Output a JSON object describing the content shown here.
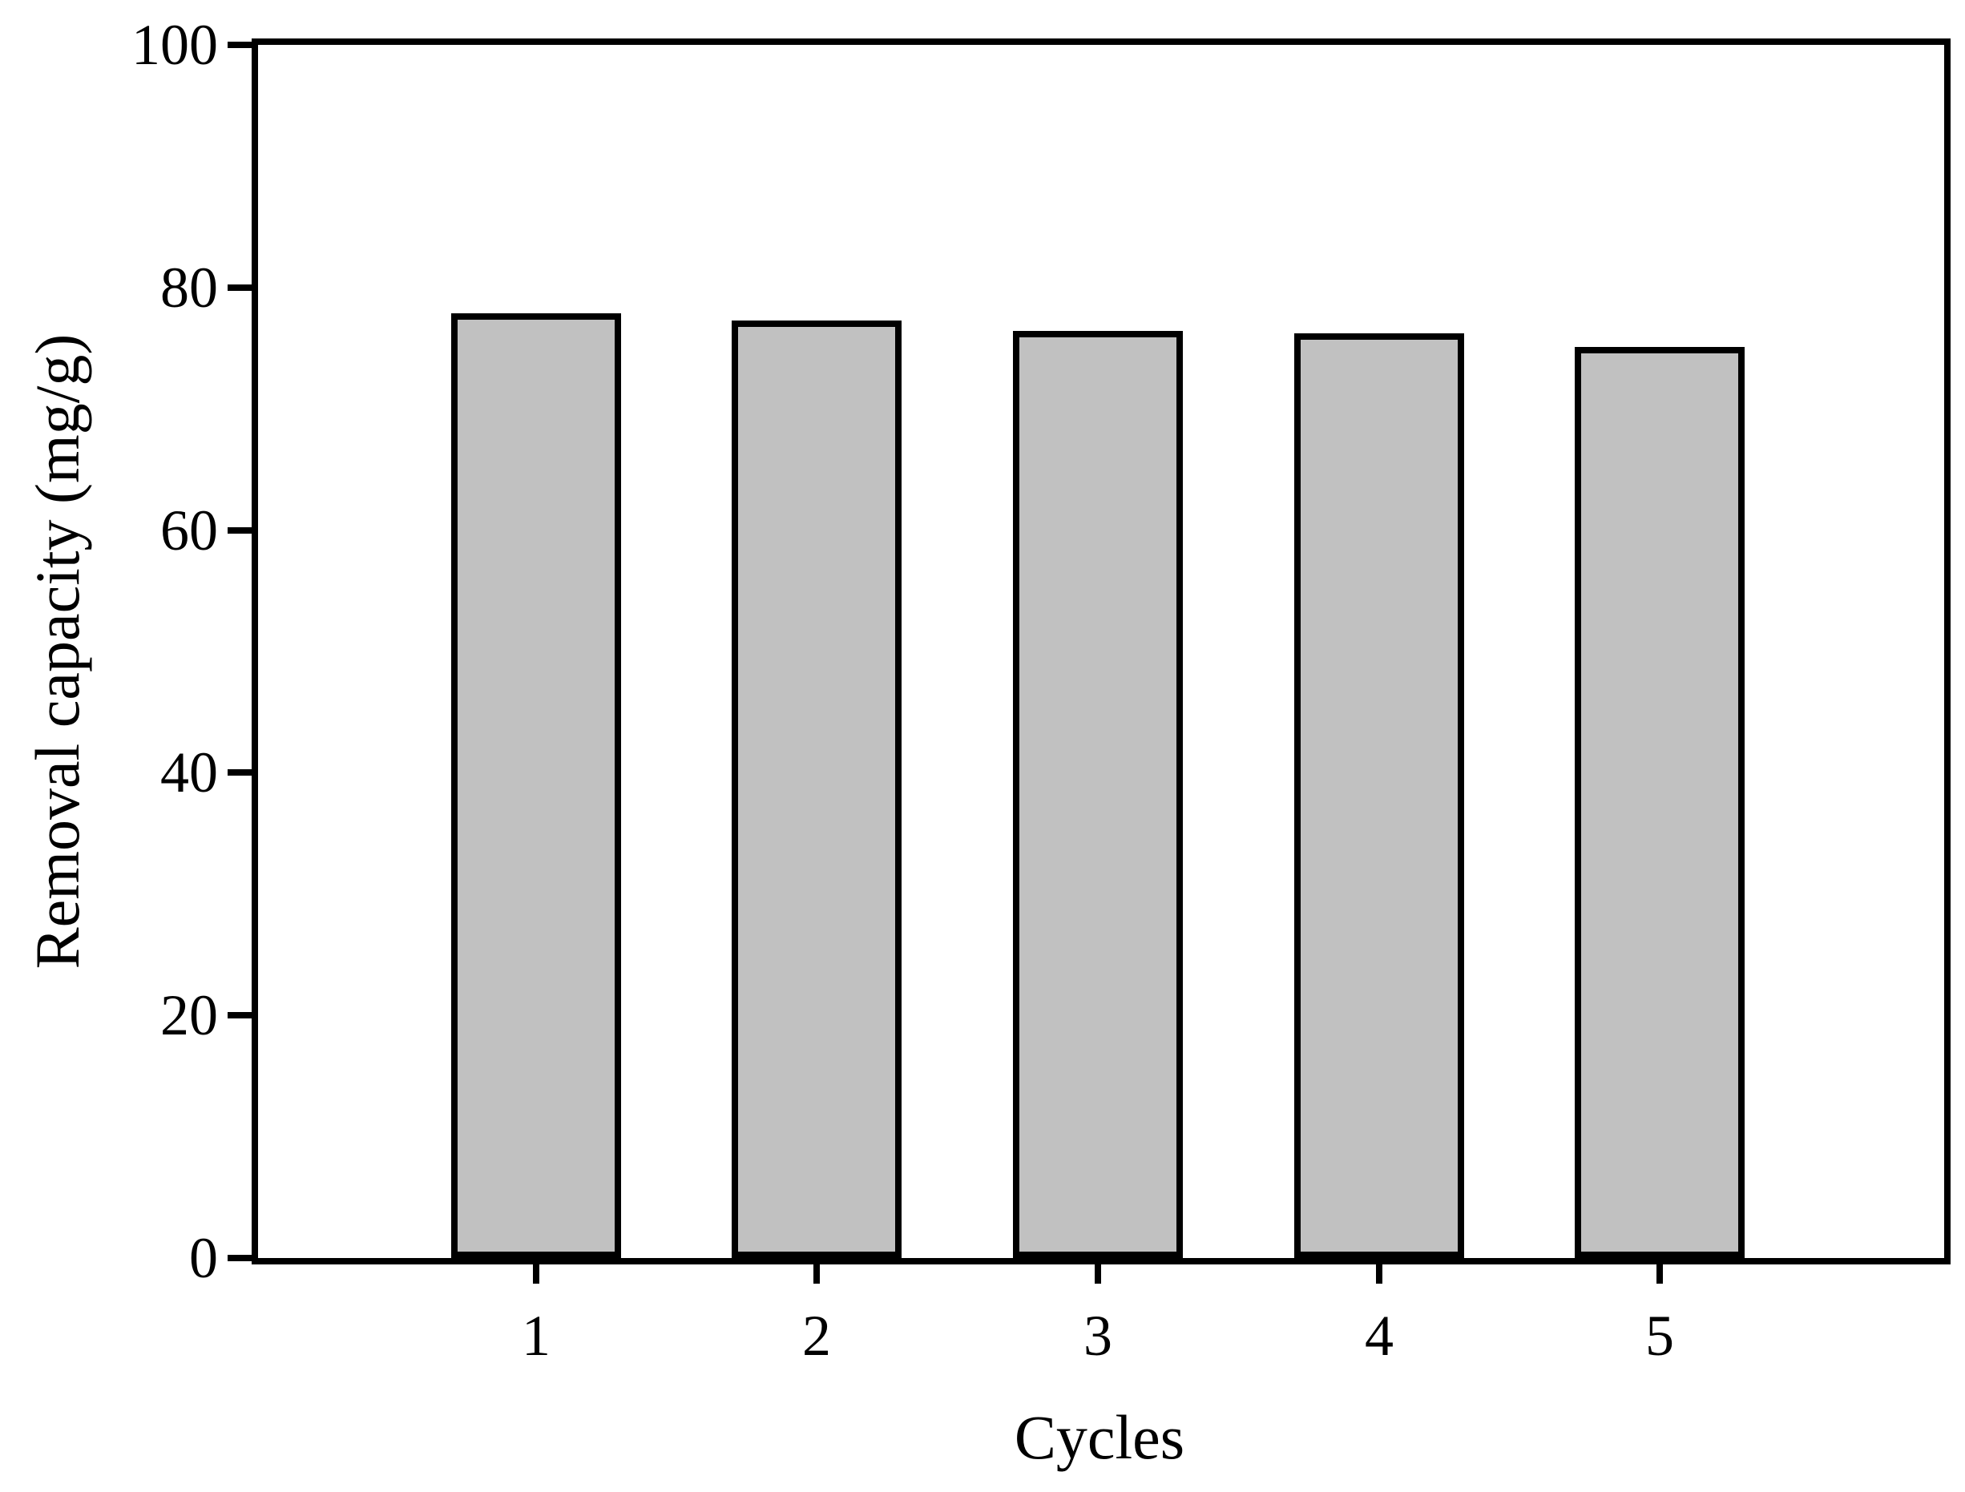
{
  "chart_data": {
    "type": "bar",
    "title": "",
    "xlabel": "Cycles",
    "ylabel": "Removal capacity (mg/g)",
    "categories": [
      "1",
      "2",
      "3",
      "4",
      "5"
    ],
    "values": [
      77.9,
      77.3,
      76.4,
      76.2,
      75.1
    ],
    "ylim": [
      0,
      100
    ],
    "yticks": [
      0,
      20,
      40,
      60,
      80,
      100
    ],
    "grid": false,
    "legend_position": "none",
    "colors": {
      "bar_fill": "#c1c1c1",
      "bar_border": "#000000",
      "axis": "#000000",
      "text": "#000000",
      "background": "#ffffff"
    }
  }
}
